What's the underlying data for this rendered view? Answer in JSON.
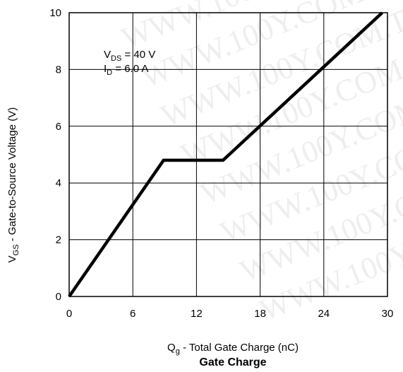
{
  "chart_data": {
    "type": "line",
    "title": "Gate Charge",
    "xlabel": {
      "main": "Q",
      "sub": "g",
      "rest": " -  Total Gate Charge (nC)"
    },
    "ylabel": {
      "main": "V",
      "sub": "GS",
      "rest": " -   Gate-to-Source Voltage (V)"
    },
    "xlim": [
      0,
      30
    ],
    "ylim": [
      0,
      10
    ],
    "xticks": [
      0,
      6,
      12,
      18,
      24,
      30
    ],
    "yticks": [
      0,
      2,
      4,
      6,
      8,
      10
    ],
    "grid": true,
    "annotations": [
      {
        "main": "V",
        "sub": "DS",
        "rest": " = 40 V"
      },
      {
        "main": "I",
        "sub": "D",
        "rest": " = 6.0 A"
      }
    ],
    "series": [
      {
        "x": [
          0,
          8.9,
          14.5,
          29.5
        ],
        "y": [
          0,
          4.8,
          4.8,
          10
        ]
      }
    ],
    "line_color": "#000000"
  },
  "watermark": [
    "WWW.100Y.COM.TW",
    "WWW.100Y.COM.TW",
    "WWW.100Y.COM.TW",
    "WWW.100Y.COM.TW",
    "WWW.100Y.COM.TW",
    "WWW.100Y.COM.TW",
    "WWW.100Y.COM.TW",
    "WWW.100Y.COM.TW"
  ]
}
